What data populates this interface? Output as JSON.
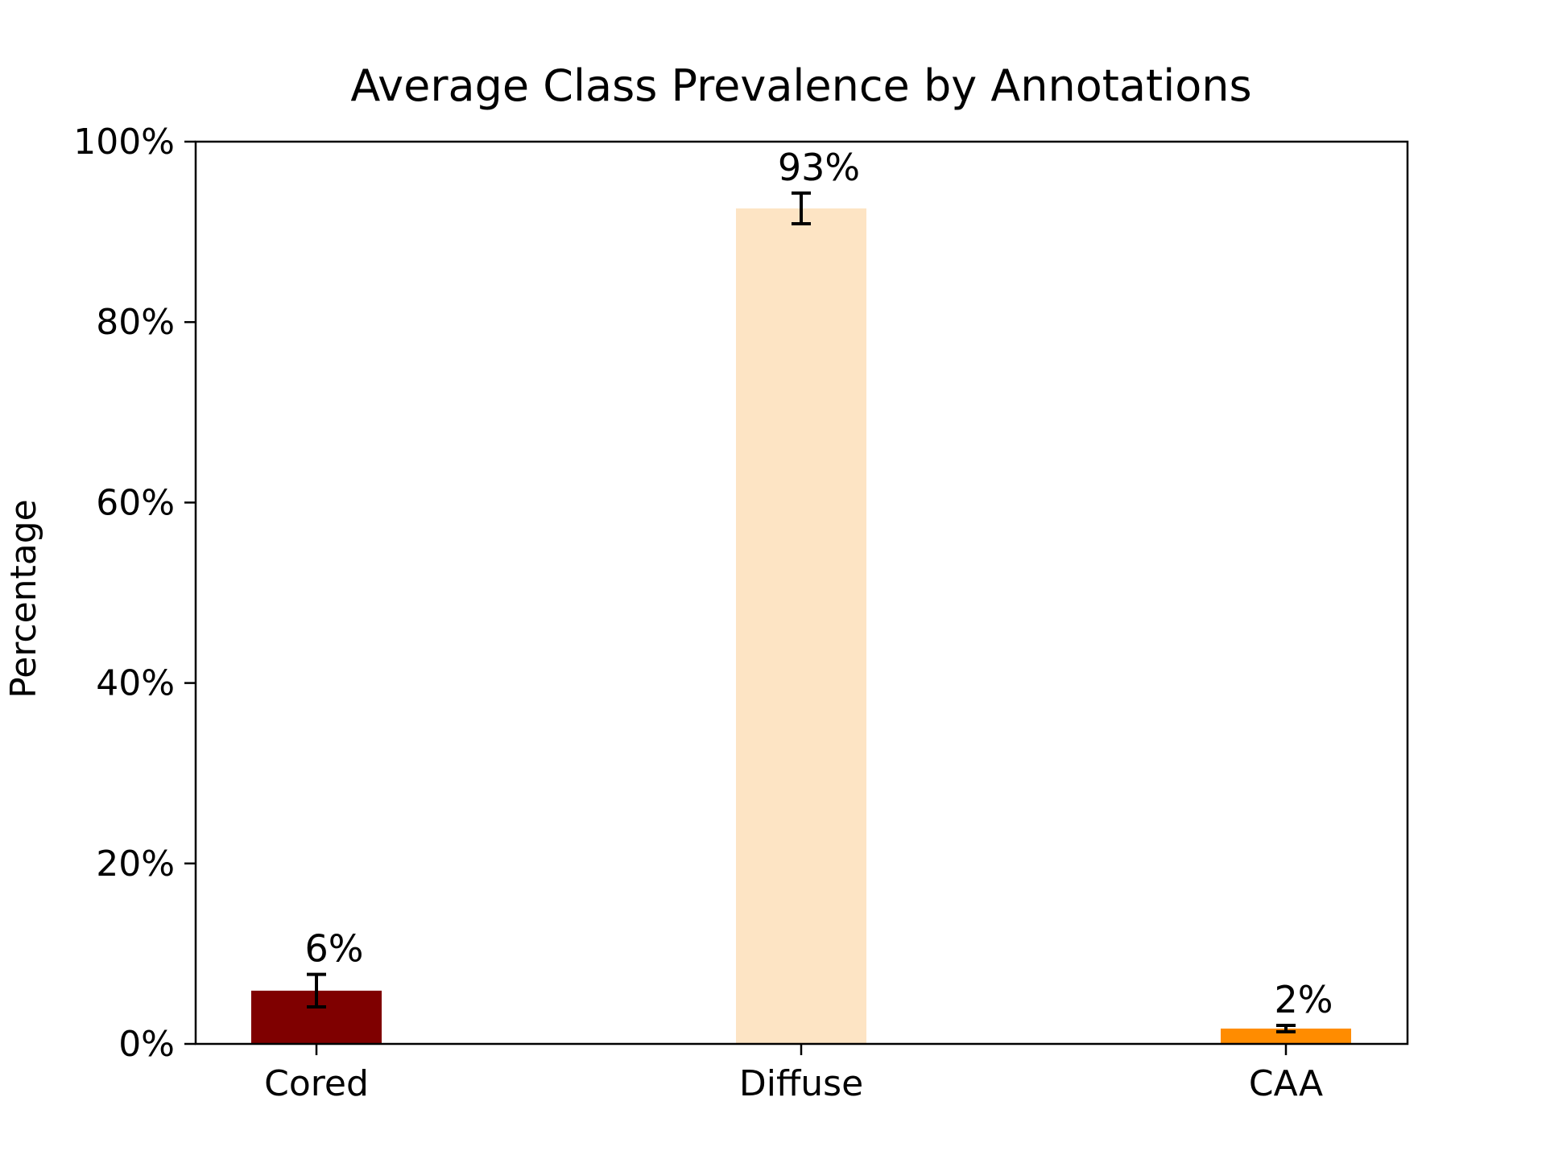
{
  "chart_data": {
    "type": "bar",
    "title": "Average Class Prevalence by Annotations",
    "xlabel": "",
    "ylabel": "Percentage",
    "categories": [
      "Cored",
      "Diffuse",
      "CAA"
    ],
    "values": [
      5.9,
      92.6,
      1.7
    ],
    "errors": [
      1.8,
      1.7,
      0.35
    ],
    "data_labels": [
      "6%",
      "93%",
      "2%"
    ],
    "colors": [
      "#7f0000",
      "#fde4c4",
      "#ff8c00"
    ],
    "ylim": [
      0,
      100
    ],
    "yticks": [
      0,
      20,
      40,
      60,
      80,
      100
    ],
    "ytick_labels": [
      "0%",
      "20%",
      "40%",
      "60%",
      "80%",
      "100%"
    ],
    "grid": false,
    "legend": "none"
  }
}
